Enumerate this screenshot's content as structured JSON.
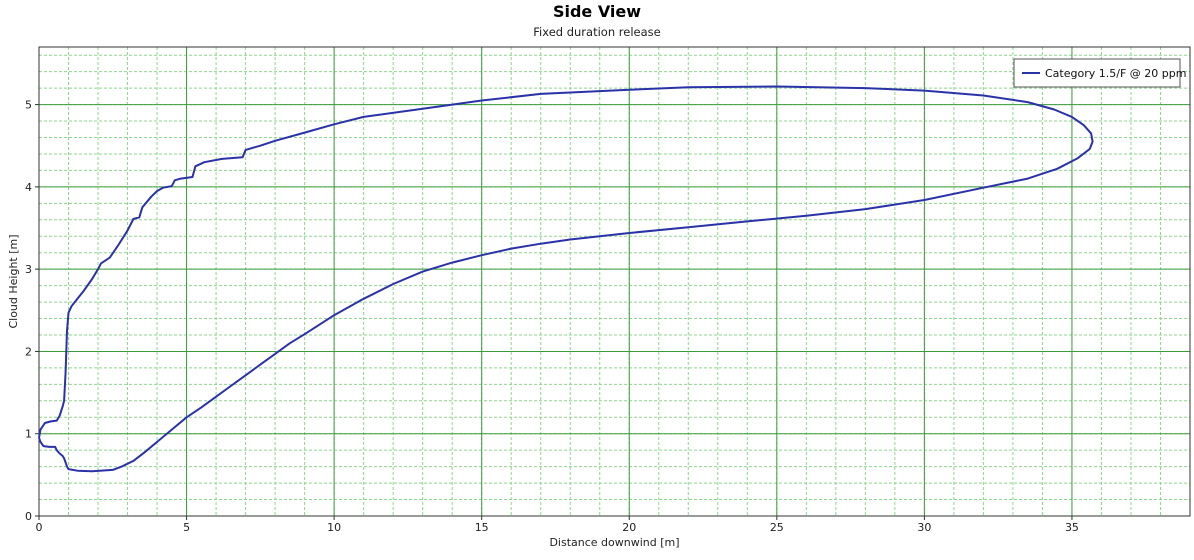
{
  "chart_data": {
    "type": "line",
    "title": "Side View",
    "subtitle": "Fixed duration release",
    "xlabel": "Distance downwind [m]",
    "ylabel": "Cloud Height [m]",
    "xlim": [
      0,
      39
    ],
    "ylim": [
      0,
      5.7
    ],
    "xticks": [
      0,
      5,
      10,
      15,
      20,
      25,
      30,
      35
    ],
    "yticks": [
      0,
      1,
      2,
      3,
      4,
      5
    ],
    "x_minor_step": 1,
    "y_minor_step": 0.2,
    "grid": true,
    "legend_position": "top-right",
    "colors": {
      "series": "#2a32a8",
      "major_grid": "#3c9a3c",
      "minor_grid": "#8fd68f",
      "frame": "#333333"
    },
    "series": [
      {
        "name": "Category 1.5/F @ 20 ppm",
        "x": [
          0.0,
          0.05,
          0.15,
          0.35,
          0.55,
          0.6,
          0.7,
          0.8,
          0.85,
          0.9,
          0.95,
          1.0,
          1.3,
          1.8,
          2.5,
          2.8,
          3.2,
          3.6,
          4.0,
          4.5,
          5.0,
          5.5,
          6.0,
          6.5,
          7.0,
          7.5,
          8.0,
          8.5,
          9.0,
          10.0,
          11.0,
          12.0,
          13.0,
          14.0,
          15.0,
          16.0,
          17.0,
          18.0,
          20.0,
          22.0,
          24.0,
          26.0,
          28.0,
          30.0,
          32.0,
          33.5,
          34.5,
          35.2,
          35.6,
          35.7,
          35.65,
          35.4,
          35.0,
          34.4,
          33.5,
          32.0,
          30.0,
          28.0,
          25.0,
          22.0,
          20.0,
          17.0,
          15.0,
          13.0,
          11.0,
          10.0,
          9.0,
          8.0,
          7.5,
          7.0,
          6.9,
          6.2,
          5.6,
          5.3,
          5.2,
          4.8,
          4.6,
          4.5,
          4.2,
          4.0,
          3.8,
          3.5,
          3.4,
          3.2,
          3.0,
          2.7,
          2.4,
          2.1,
          2.0,
          1.8,
          1.5,
          1.3,
          1.1,
          1.0,
          0.95,
          0.9,
          0.85,
          0.8,
          0.7,
          0.6,
          0.4,
          0.2,
          0.05,
          0.0
        ],
        "y": [
          0.95,
          0.9,
          0.85,
          0.84,
          0.84,
          0.8,
          0.76,
          0.73,
          0.7,
          0.65,
          0.6,
          0.57,
          0.55,
          0.545,
          0.56,
          0.6,
          0.67,
          0.78,
          0.9,
          1.05,
          1.2,
          1.32,
          1.45,
          1.58,
          1.71,
          1.84,
          1.97,
          2.1,
          2.21,
          2.44,
          2.64,
          2.82,
          2.97,
          3.08,
          3.17,
          3.25,
          3.31,
          3.36,
          3.44,
          3.51,
          3.58,
          3.65,
          3.73,
          3.84,
          3.99,
          4.1,
          4.22,
          4.35,
          4.46,
          4.55,
          4.65,
          4.75,
          4.85,
          4.94,
          5.03,
          5.11,
          5.17,
          5.2,
          5.22,
          5.21,
          5.18,
          5.13,
          5.05,
          4.95,
          4.85,
          4.76,
          4.66,
          4.56,
          4.5,
          4.45,
          4.36,
          4.34,
          4.3,
          4.25,
          4.12,
          4.1,
          4.08,
          4.01,
          3.99,
          3.95,
          3.88,
          3.75,
          3.63,
          3.61,
          3.47,
          3.3,
          3.14,
          3.07,
          3.0,
          2.88,
          2.73,
          2.64,
          2.55,
          2.47,
          2.25,
          1.75,
          1.4,
          1.33,
          1.22,
          1.16,
          1.15,
          1.13,
          1.05,
          0.95
        ]
      }
    ]
  }
}
